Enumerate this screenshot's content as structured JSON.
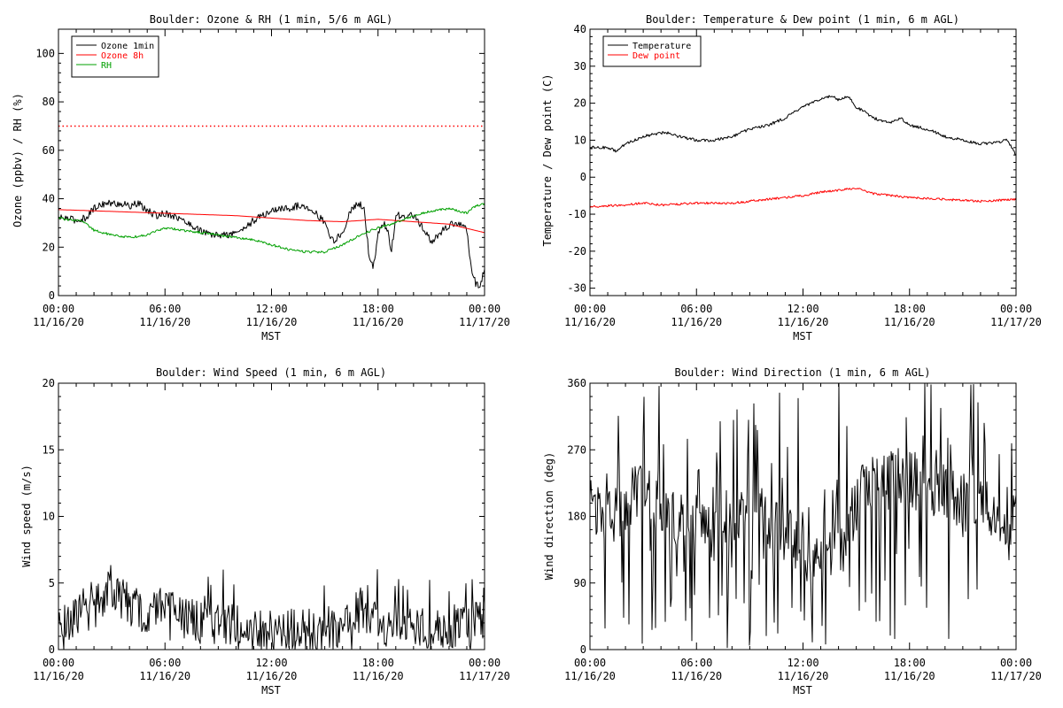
{
  "chart_data": [
    {
      "type": "line",
      "title": "Boulder: Ozone & RH (1 min, 5/6 m AGL)",
      "ylabel": "Ozone (ppbv) / RH (%)",
      "xlabel": "MST",
      "xlim": [
        0,
        24
      ],
      "ylim": [
        0,
        110
      ],
      "yticks": [
        "0",
        "20",
        "40",
        "60",
        "80",
        "100"
      ],
      "yticks_values": [
        0,
        20,
        40,
        60,
        80,
        100
      ],
      "xtick_values": [
        0,
        6,
        12,
        18,
        24
      ],
      "xticks": [
        {
          "time": "00:00",
          "date": "11/16/20"
        },
        {
          "time": "06:00",
          "date": "11/16/20"
        },
        {
          "time": "12:00",
          "date": "11/16/20"
        },
        {
          "time": "18:00",
          "date": "11/16/20"
        },
        {
          "time": "00:00",
          "date": "11/17/20"
        }
      ],
      "legend": {
        "placement": "top-left",
        "entries": [
          {
            "name": "Ozone 1min",
            "color": "#000000"
          },
          {
            "name": "Ozone 8h",
            "color": "#ff0000"
          },
          {
            "name": "RH",
            "color": "#00a000"
          }
        ]
      },
      "reference_line": {
        "y": 70,
        "color": "#ff0000",
        "style": "dotted"
      },
      "series": [
        {
          "name": "Ozone 1min",
          "color": "#000000",
          "noise": 1.5,
          "x": [
            0,
            0.5,
            1,
            1.5,
            2,
            2.5,
            3,
            3.5,
            4,
            4.5,
            5,
            5.5,
            6,
            6.5,
            7,
            7.5,
            8,
            8.5,
            9,
            9.5,
            10,
            10.5,
            11,
            11.5,
            12,
            12.5,
            13,
            13.5,
            14,
            14.5,
            15,
            15.5,
            16,
            16.5,
            17,
            17.25,
            17.5,
            17.75,
            18,
            18.25,
            18.5,
            18.75,
            19,
            19.5,
            20,
            20.5,
            21,
            21.5,
            22,
            22.5,
            23,
            23.25,
            23.5,
            23.75,
            24
          ],
          "y": [
            32,
            32,
            31,
            32,
            36,
            38,
            38,
            38,
            37,
            38,
            35,
            33,
            34,
            33,
            31,
            29,
            27,
            25,
            25,
            25,
            26,
            28,
            31,
            33,
            35,
            36,
            36,
            37,
            37,
            34,
            30,
            22,
            26,
            36,
            38,
            35,
            15,
            12,
            25,
            30,
            28,
            18,
            33,
            33,
            33,
            28,
            22,
            26,
            29,
            30,
            27,
            12,
            5,
            4,
            11
          ]
        },
        {
          "name": "Ozone 8h",
          "color": "#ff0000",
          "noise": 0,
          "x": [
            0,
            2,
            4,
            6,
            8,
            10,
            12,
            14,
            16,
            18,
            20,
            22,
            24
          ],
          "y": [
            35.5,
            35,
            34.5,
            34,
            33.5,
            33,
            32,
            31,
            30.5,
            31.5,
            30.5,
            29.5,
            26
          ]
        },
        {
          "name": "RH",
          "color": "#00a000",
          "noise": 0.5,
          "x": [
            0,
            1,
            1.5,
            2,
            3,
            4,
            5,
            6,
            7,
            8,
            9,
            10,
            11,
            12,
            13,
            14,
            15,
            16,
            17,
            18,
            19,
            20,
            21,
            22,
            23,
            23.5,
            24
          ],
          "y": [
            32,
            31,
            30,
            27,
            25,
            24,
            25,
            28,
            27,
            26,
            25,
            24,
            23,
            21,
            19,
            18,
            18,
            21,
            25,
            28,
            30,
            33,
            35,
            36,
            34,
            37,
            38
          ]
        }
      ]
    },
    {
      "type": "line",
      "title": "Boulder: Temperature & Dew point (1 min, 6 m AGL)",
      "ylabel": "Temperature / Dew point (C)",
      "xlabel": "MST",
      "xlim": [
        0,
        24
      ],
      "ylim": [
        -32,
        40
      ],
      "yticks": [
        "-30",
        "-20",
        "-10",
        "0",
        "10",
        "20",
        "30",
        "40"
      ],
      "yticks_values": [
        -30,
        -20,
        -10,
        0,
        10,
        20,
        30,
        40
      ],
      "xtick_values": [
        0,
        6,
        12,
        18,
        24
      ],
      "xticks": [
        {
          "time": "00:00",
          "date": "11/16/20"
        },
        {
          "time": "06:00",
          "date": "11/16/20"
        },
        {
          "time": "12:00",
          "date": "11/16/20"
        },
        {
          "time": "18:00",
          "date": "11/16/20"
        },
        {
          "time": "00:00",
          "date": "11/17/20"
        }
      ],
      "legend": {
        "placement": "top-left",
        "entries": [
          {
            "name": "Temperature",
            "color": "#000000"
          },
          {
            "name": "Dew point",
            "color": "#ff0000"
          }
        ]
      },
      "series": [
        {
          "name": "Temperature",
          "color": "#000000",
          "noise": 0.4,
          "x": [
            0,
            1,
            1.5,
            2,
            3,
            4,
            4.5,
            5,
            6,
            7,
            8,
            9,
            10,
            11,
            12,
            13,
            13.5,
            14,
            14.5,
            15,
            16,
            16.5,
            17,
            17.5,
            18,
            19,
            20,
            21,
            22,
            23,
            23.5,
            24
          ],
          "y": [
            8,
            8,
            7,
            9,
            11,
            12,
            12,
            11,
            10,
            10,
            11,
            13,
            14,
            16,
            19,
            21,
            22,
            21,
            22,
            19,
            16,
            15,
            15,
            16,
            14,
            13,
            11,
            10,
            9,
            9.5,
            10,
            6
          ]
        },
        {
          "name": "Dew point",
          "color": "#ff0000",
          "noise": 0.3,
          "x": [
            0,
            2,
            3,
            4,
            6,
            8,
            10,
            12,
            13,
            14,
            15,
            16,
            18,
            20,
            22,
            24
          ],
          "y": [
            -8,
            -7.5,
            -7,
            -7.5,
            -7,
            -7,
            -6,
            -5,
            -4,
            -3.5,
            -3,
            -4.5,
            -5.5,
            -6,
            -6.5,
            -6
          ]
        }
      ]
    },
    {
      "type": "line",
      "title": "Boulder: Wind Speed (1 min, 6 m AGL)",
      "ylabel": "Wind speed (m/s)",
      "xlabel": "MST",
      "xlim": [
        0,
        24
      ],
      "ylim": [
        0,
        20
      ],
      "yticks": [
        "0",
        "5",
        "10",
        "15",
        "20"
      ],
      "yticks_values": [
        0,
        5,
        10,
        15,
        20
      ],
      "xtick_values": [
        0,
        6,
        12,
        18,
        24
      ],
      "xticks": [
        {
          "time": "00:00",
          "date": "11/16/20"
        },
        {
          "time": "06:00",
          "date": "11/16/20"
        },
        {
          "time": "12:00",
          "date": "11/16/20"
        },
        {
          "time": "18:00",
          "date": "11/16/20"
        },
        {
          "time": "00:00",
          "date": "11/17/20"
        }
      ],
      "series": [
        {
          "name": "",
          "color": "#000000",
          "noise": 1.6,
          "x": [
            0,
            1,
            2,
            2.5,
            3,
            3.5,
            4,
            4.5,
            5,
            5.5,
            6,
            6.5,
            7,
            8,
            9,
            10,
            11,
            12,
            13,
            14,
            15,
            16,
            16.5,
            17,
            17.5,
            18,
            19,
            20,
            21,
            22,
            23,
            23.5,
            24
          ],
          "y": [
            1.5,
            2,
            2.5,
            3.5,
            4,
            3.5,
            3,
            2.5,
            2,
            2.5,
            3.5,
            2.5,
            2,
            1.5,
            1.5,
            1.5,
            1,
            1,
            1,
            1,
            0.8,
            1,
            1.5,
            3,
            2,
            1.5,
            1,
            1.2,
            1.2,
            1.2,
            1.5,
            2,
            1.5
          ]
        }
      ]
    },
    {
      "type": "line",
      "title": "Boulder: Wind Direction (1 min, 6 m AGL)",
      "ylabel": "Wind direction (deg)",
      "xlabel": "MST",
      "xlim": [
        0,
        24
      ],
      "ylim": [
        0,
        360
      ],
      "yticks": [
        "0",
        "90",
        "180",
        "270",
        "360"
      ],
      "yticks_values": [
        0,
        90,
        180,
        270,
        360
      ],
      "xtick_values": [
        0,
        6,
        12,
        18,
        24
      ],
      "xticks": [
        {
          "time": "00:00",
          "date": "11/16/20"
        },
        {
          "time": "06:00",
          "date": "11/16/20"
        },
        {
          "time": "12:00",
          "date": "11/16/20"
        },
        {
          "time": "18:00",
          "date": "11/16/20"
        },
        {
          "time": "00:00",
          "date": "11/17/20"
        }
      ],
      "series": [
        {
          "name": "",
          "color": "#000000",
          "noise": 120,
          "x": [
            0,
            1,
            2,
            3,
            4,
            5,
            6,
            7,
            8,
            9,
            10,
            11,
            12,
            13,
            14,
            15,
            16,
            17,
            18,
            19,
            20,
            21,
            22,
            23,
            24
          ],
          "y": [
            190,
            170,
            200,
            220,
            180,
            170,
            180,
            150,
            160,
            220,
            180,
            150,
            150,
            120,
            140,
            200,
            230,
            240,
            230,
            220,
            210,
            200,
            200,
            180,
            180
          ]
        }
      ]
    }
  ]
}
